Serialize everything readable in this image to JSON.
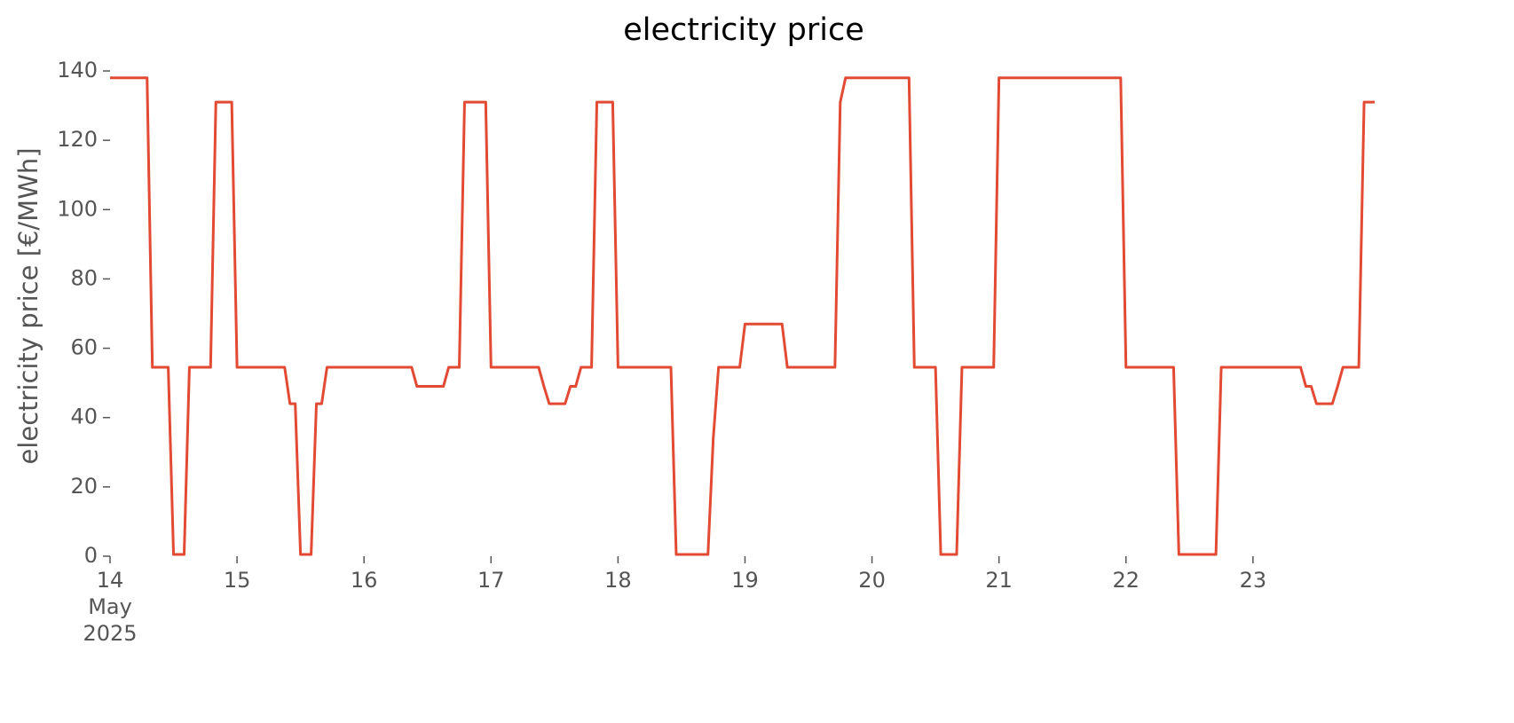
{
  "chart_data": {
    "type": "line",
    "title": "electricity price",
    "ylabel": "electricity price [€/MWh]",
    "x": [
      "2025-05-14T00:00",
      "2025-05-14T01:00",
      "2025-05-14T02:00",
      "2025-05-14T03:00",
      "2025-05-14T04:00",
      "2025-05-14T05:00",
      "2025-05-14T06:00",
      "2025-05-14T07:00",
      "2025-05-14T08:00",
      "2025-05-14T09:00",
      "2025-05-14T10:00",
      "2025-05-14T11:00",
      "2025-05-14T12:00",
      "2025-05-14T13:00",
      "2025-05-14T14:00",
      "2025-05-14T15:00",
      "2025-05-14T16:00",
      "2025-05-14T17:00",
      "2025-05-14T18:00",
      "2025-05-14T19:00",
      "2025-05-14T20:00",
      "2025-05-14T21:00",
      "2025-05-14T22:00",
      "2025-05-14T23:00",
      "2025-05-15T00:00",
      "2025-05-15T01:00",
      "2025-05-15T02:00",
      "2025-05-15T03:00",
      "2025-05-15T04:00",
      "2025-05-15T05:00",
      "2025-05-15T06:00",
      "2025-05-15T07:00",
      "2025-05-15T08:00",
      "2025-05-15T09:00",
      "2025-05-15T10:00",
      "2025-05-15T11:00",
      "2025-05-15T12:00",
      "2025-05-15T13:00",
      "2025-05-15T14:00",
      "2025-05-15T15:00",
      "2025-05-15T16:00",
      "2025-05-15T17:00",
      "2025-05-15T18:00",
      "2025-05-15T19:00",
      "2025-05-15T20:00",
      "2025-05-15T21:00",
      "2025-05-15T22:00",
      "2025-05-15T23:00",
      "2025-05-16T00:00",
      "2025-05-16T01:00",
      "2025-05-16T02:00",
      "2025-05-16T03:00",
      "2025-05-16T04:00",
      "2025-05-16T05:00",
      "2025-05-16T06:00",
      "2025-05-16T07:00",
      "2025-05-16T08:00",
      "2025-05-16T09:00",
      "2025-05-16T10:00",
      "2025-05-16T11:00",
      "2025-05-16T12:00",
      "2025-05-16T13:00",
      "2025-05-16T14:00",
      "2025-05-16T15:00",
      "2025-05-16T16:00",
      "2025-05-16T17:00",
      "2025-05-16T18:00",
      "2025-05-16T19:00",
      "2025-05-16T20:00",
      "2025-05-16T21:00",
      "2025-05-16T22:00",
      "2025-05-16T23:00",
      "2025-05-17T00:00",
      "2025-05-17T01:00",
      "2025-05-17T02:00",
      "2025-05-17T03:00",
      "2025-05-17T04:00",
      "2025-05-17T05:00",
      "2025-05-17T06:00",
      "2025-05-17T07:00",
      "2025-05-17T08:00",
      "2025-05-17T09:00",
      "2025-05-17T10:00",
      "2025-05-17T11:00",
      "2025-05-17T12:00",
      "2025-05-17T13:00",
      "2025-05-17T14:00",
      "2025-05-17T15:00",
      "2025-05-17T16:00",
      "2025-05-17T17:00",
      "2025-05-17T18:00",
      "2025-05-17T19:00",
      "2025-05-17T20:00",
      "2025-05-17T21:00",
      "2025-05-17T22:00",
      "2025-05-17T23:00",
      "2025-05-18T00:00",
      "2025-05-18T01:00",
      "2025-05-18T02:00",
      "2025-05-18T03:00",
      "2025-05-18T04:00",
      "2025-05-18T05:00",
      "2025-05-18T06:00",
      "2025-05-18T07:00",
      "2025-05-18T08:00",
      "2025-05-18T09:00",
      "2025-05-18T10:00",
      "2025-05-18T11:00",
      "2025-05-18T12:00",
      "2025-05-18T13:00",
      "2025-05-18T14:00",
      "2025-05-18T15:00",
      "2025-05-18T16:00",
      "2025-05-18T17:00",
      "2025-05-18T18:00",
      "2025-05-18T19:00",
      "2025-05-18T20:00",
      "2025-05-18T21:00",
      "2025-05-18T22:00",
      "2025-05-18T23:00",
      "2025-05-19T00:00",
      "2025-05-19T01:00",
      "2025-05-19T02:00",
      "2025-05-19T03:00",
      "2025-05-19T04:00",
      "2025-05-19T05:00",
      "2025-05-19T06:00",
      "2025-05-19T07:00",
      "2025-05-19T08:00",
      "2025-05-19T09:00",
      "2025-05-19T10:00",
      "2025-05-19T11:00",
      "2025-05-19T12:00",
      "2025-05-19T13:00",
      "2025-05-19T14:00",
      "2025-05-19T15:00",
      "2025-05-19T16:00",
      "2025-05-19T17:00",
      "2025-05-19T18:00",
      "2025-05-19T19:00",
      "2025-05-19T20:00",
      "2025-05-19T21:00",
      "2025-05-19T22:00",
      "2025-05-19T23:00",
      "2025-05-20T00:00",
      "2025-05-20T01:00",
      "2025-05-20T02:00",
      "2025-05-20T03:00",
      "2025-05-20T04:00",
      "2025-05-20T05:00",
      "2025-05-20T06:00",
      "2025-05-20T07:00",
      "2025-05-20T08:00",
      "2025-05-20T09:00",
      "2025-05-20T10:00",
      "2025-05-20T11:00",
      "2025-05-20T12:00",
      "2025-05-20T13:00",
      "2025-05-20T14:00",
      "2025-05-20T15:00",
      "2025-05-20T16:00",
      "2025-05-20T17:00",
      "2025-05-20T18:00",
      "2025-05-20T19:00",
      "2025-05-20T20:00",
      "2025-05-20T21:00",
      "2025-05-20T22:00",
      "2025-05-20T23:00",
      "2025-05-21T00:00",
      "2025-05-21T01:00",
      "2025-05-21T02:00",
      "2025-05-21T03:00",
      "2025-05-21T04:00",
      "2025-05-21T05:00",
      "2025-05-21T06:00",
      "2025-05-21T07:00",
      "2025-05-21T08:00",
      "2025-05-21T09:00",
      "2025-05-21T10:00",
      "2025-05-21T11:00",
      "2025-05-21T12:00",
      "2025-05-21T13:00",
      "2025-05-21T14:00",
      "2025-05-21T15:00",
      "2025-05-21T16:00",
      "2025-05-21T17:00",
      "2025-05-21T18:00",
      "2025-05-21T19:00",
      "2025-05-21T20:00",
      "2025-05-21T21:00",
      "2025-05-21T22:00",
      "2025-05-21T23:00",
      "2025-05-22T00:00",
      "2025-05-22T01:00",
      "2025-05-22T02:00",
      "2025-05-22T03:00",
      "2025-05-22T04:00",
      "2025-05-22T05:00",
      "2025-05-22T06:00",
      "2025-05-22T07:00",
      "2025-05-22T08:00",
      "2025-05-22T09:00",
      "2025-05-22T10:00",
      "2025-05-22T11:00",
      "2025-05-22T12:00",
      "2025-05-22T13:00",
      "2025-05-22T14:00",
      "2025-05-22T15:00",
      "2025-05-22T16:00",
      "2025-05-22T17:00",
      "2025-05-22T18:00",
      "2025-05-22T19:00",
      "2025-05-22T20:00",
      "2025-05-22T21:00",
      "2025-05-22T22:00",
      "2025-05-22T23:00",
      "2025-05-23T00:00",
      "2025-05-23T01:00",
      "2025-05-23T02:00",
      "2025-05-23T03:00",
      "2025-05-23T04:00",
      "2025-05-23T05:00",
      "2025-05-23T06:00",
      "2025-05-23T07:00",
      "2025-05-23T08:00",
      "2025-05-23T09:00",
      "2025-05-23T10:00",
      "2025-05-23T11:00",
      "2025-05-23T12:00",
      "2025-05-23T13:00",
      "2025-05-23T14:00",
      "2025-05-23T15:00",
      "2025-05-23T16:00",
      "2025-05-23T17:00",
      "2025-05-23T18:00",
      "2025-05-23T19:00",
      "2025-05-23T20:00",
      "2025-05-23T21:00",
      "2025-05-23T22:00",
      "2025-05-23T23:00"
    ],
    "series": [
      {
        "name": "electricity price",
        "color": "#e24a33",
        "values": [
          138,
          138,
          138,
          138,
          138,
          138,
          138,
          138,
          54.5,
          54.5,
          54.5,
          54.5,
          0.5,
          0.5,
          0.5,
          54.5,
          54.5,
          54.5,
          54.5,
          54.5,
          131,
          131,
          131,
          131,
          54.5,
          54.5,
          54.5,
          54.5,
          54.5,
          54.5,
          54.5,
          54.5,
          54.5,
          54.5,
          44,
          44,
          0.5,
          0.5,
          0.5,
          44,
          44,
          54.5,
          54.5,
          54.5,
          54.5,
          54.5,
          54.5,
          54.5,
          54.5,
          54.5,
          54.5,
          54.5,
          54.5,
          54.5,
          54.5,
          54.5,
          54.5,
          54.5,
          49,
          49,
          49,
          49,
          49,
          49,
          54.5,
          54.5,
          54.5,
          131,
          131,
          131,
          131,
          131,
          54.5,
          54.5,
          54.5,
          54.5,
          54.5,
          54.5,
          54.5,
          54.5,
          54.5,
          54.5,
          49,
          44,
          44,
          44,
          44,
          49,
          49,
          54.5,
          54.5,
          54.5,
          131,
          131,
          131,
          131,
          54.5,
          54.5,
          54.5,
          54.5,
          54.5,
          54.5,
          54.5,
          54.5,
          54.5,
          54.5,
          54.5,
          0.5,
          0.5,
          0.5,
          0.5,
          0.5,
          0.5,
          0.5,
          34,
          54.5,
          54.5,
          54.5,
          54.5,
          54.5,
          67,
          67,
          67,
          67,
          67,
          67,
          67,
          67,
          54.5,
          54.5,
          54.5,
          54.5,
          54.5,
          54.5,
          54.5,
          54.5,
          54.5,
          54.5,
          131,
          138,
          138,
          138,
          138,
          138,
          138,
          138,
          138,
          138,
          138,
          138,
          138,
          138,
          54.5,
          54.5,
          54.5,
          54.5,
          54.5,
          0.5,
          0.5,
          0.5,
          0.5,
          54.5,
          54.5,
          54.5,
          54.5,
          54.5,
          54.5,
          54.5,
          138,
          138,
          138,
          138,
          138,
          138,
          138,
          138,
          138,
          138,
          138,
          138,
          138,
          138,
          138,
          138,
          138,
          138,
          138,
          138,
          138,
          138,
          138,
          138,
          54.5,
          54.5,
          54.5,
          54.5,
          54.5,
          54.5,
          54.5,
          54.5,
          54.5,
          54.5,
          0.5,
          0.5,
          0.5,
          0.5,
          0.5,
          0.5,
          0.5,
          0.5,
          54.5,
          54.5,
          54.5,
          54.5,
          54.5,
          54.5,
          54.5,
          54.5,
          54.5,
          54.5,
          54.5,
          54.5,
          54.5,
          54.5,
          54.5,
          54.5,
          49,
          49,
          44,
          44,
          44,
          44,
          49,
          54.5,
          54.5,
          54.5,
          54.5,
          131,
          131,
          131
        ]
      }
    ],
    "xlim": [
      "2025-05-14T00:00",
      "2025-05-23T23:00"
    ],
    "xticks": [
      {
        "value": "2025-05-14T00:00",
        "label": [
          "14",
          "May",
          "2025"
        ]
      },
      {
        "value": "2025-05-15T00:00",
        "label": "15"
      },
      {
        "value": "2025-05-16T00:00",
        "label": "16"
      },
      {
        "value": "2025-05-17T00:00",
        "label": "17"
      },
      {
        "value": "2025-05-18T00:00",
        "label": "18"
      },
      {
        "value": "2025-05-19T00:00",
        "label": "19"
      },
      {
        "value": "2025-05-20T00:00",
        "label": "20"
      },
      {
        "value": "2025-05-21T00:00",
        "label": "21"
      },
      {
        "value": "2025-05-22T00:00",
        "label": "22"
      },
      {
        "value": "2025-05-23T00:00",
        "label": "23"
      }
    ],
    "ylim": [
      0,
      140
    ],
    "yticks": [
      0,
      20,
      40,
      60,
      80,
      100,
      120,
      140
    ],
    "grid": false
  }
}
